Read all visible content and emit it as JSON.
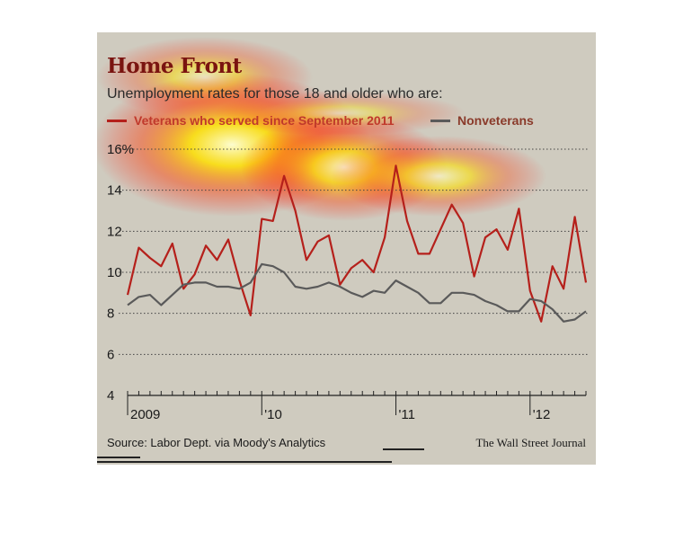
{
  "title": "Home Front",
  "subtitle": "Unemployment rates for those 18 and older who are:",
  "source": "Source: Labor Dept. via Moody's Analytics",
  "credit": "The Wall Street Journal",
  "colors": {
    "veterans": "#b5201b",
    "nonveterans": "#5a5a5a",
    "background": "#cfcbbf"
  },
  "chart_data": {
    "type": "line",
    "x": [
      "2009-01",
      "2009-02",
      "2009-03",
      "2009-04",
      "2009-05",
      "2009-06",
      "2009-07",
      "2009-08",
      "2009-09",
      "2009-10",
      "2009-11",
      "2009-12",
      "2010-01",
      "2010-02",
      "2010-03",
      "2010-04",
      "2010-05",
      "2010-06",
      "2010-07",
      "2010-08",
      "2010-09",
      "2010-10",
      "2010-11",
      "2010-12",
      "2011-01",
      "2011-02",
      "2011-03",
      "2011-04",
      "2011-05",
      "2011-06",
      "2011-07",
      "2011-08",
      "2011-09",
      "2011-10",
      "2011-11",
      "2011-12",
      "2012-01",
      "2012-02",
      "2012-03",
      "2012-04",
      "2012-05",
      "2012-06"
    ],
    "x_tick_labels": [
      "2009",
      "'10",
      "'11",
      "'12"
    ],
    "y_tick_labels": [
      "4",
      "6",
      "8",
      "10",
      "12",
      "14",
      "16%"
    ],
    "y_ticks": [
      4,
      6,
      8,
      10,
      12,
      14,
      16
    ],
    "ylim": [
      4,
      16
    ],
    "grid": true,
    "legend_position": "top",
    "series": [
      {
        "name": "Veterans who served since September 2011",
        "values": [
          8.9,
          11.2,
          10.7,
          10.3,
          11.4,
          9.2,
          9.9,
          11.3,
          10.6,
          11.6,
          9.6,
          7.9,
          12.6,
          12.5,
          14.7,
          13.0,
          10.6,
          11.5,
          11.8,
          9.4,
          10.2,
          10.6,
          10.0,
          11.7,
          15.2,
          12.5,
          10.9,
          10.9,
          12.1,
          13.3,
          12.4,
          9.8,
          11.7,
          12.1,
          11.1,
          13.1,
          9.1,
          7.6,
          10.3,
          9.2,
          12.7,
          9.5
        ]
      },
      {
        "name": "Nonveterans",
        "values": [
          8.4,
          8.8,
          8.9,
          8.4,
          8.9,
          9.4,
          9.5,
          9.5,
          9.3,
          9.3,
          9.2,
          9.5,
          10.4,
          10.3,
          10.0,
          9.3,
          9.2,
          9.3,
          9.5,
          9.3,
          9.0,
          8.8,
          9.1,
          9.0,
          9.6,
          9.3,
          9.0,
          8.5,
          8.5,
          9.0,
          9.0,
          8.9,
          8.6,
          8.4,
          8.1,
          8.1,
          8.7,
          8.6,
          8.2,
          7.6,
          7.7,
          8.1
        ]
      }
    ]
  }
}
